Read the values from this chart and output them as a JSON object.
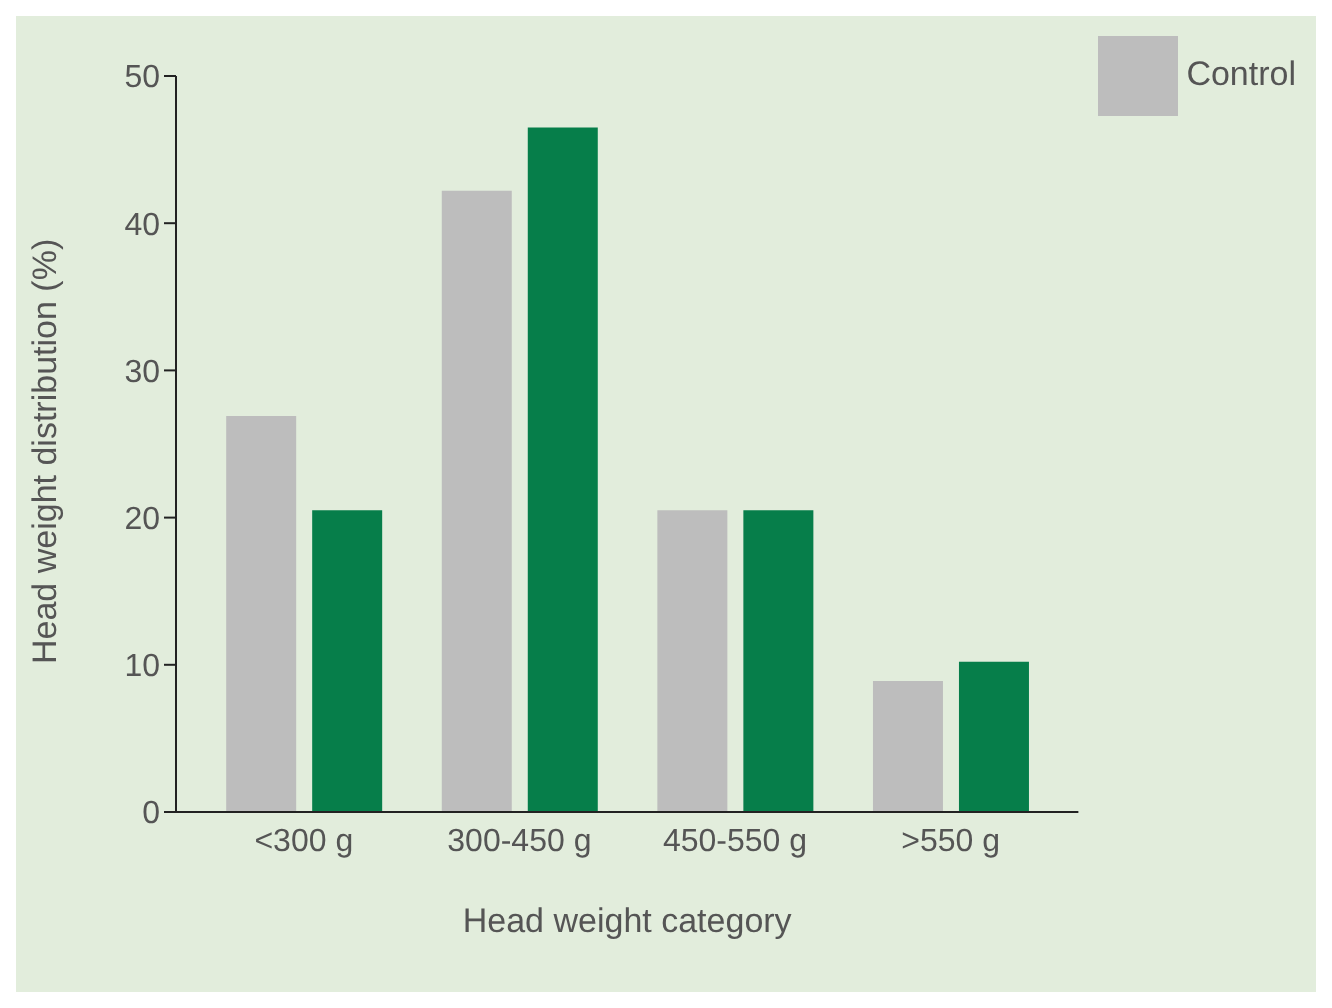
{
  "chart_data": {
    "type": "bar",
    "xlabel": "Head weight category",
    "ylabel": "Head weight distribution (%)",
    "categories": [
      "<300 g",
      "300-450 g",
      "450-550 g",
      ">550 g"
    ],
    "series": [
      {
        "name": "Control",
        "color": "#bdbdbd",
        "values": [
          26.9,
          42.2,
          20.5,
          8.9
        ]
      },
      {
        "color": "#067e4a",
        "values": [
          20.5,
          46.5,
          20.5,
          10.2
        ]
      }
    ],
    "ylim": [
      0,
      50
    ],
    "yticks": [
      0,
      10,
      20,
      30,
      40,
      50
    ],
    "grid": false,
    "legend": "top right"
  }
}
